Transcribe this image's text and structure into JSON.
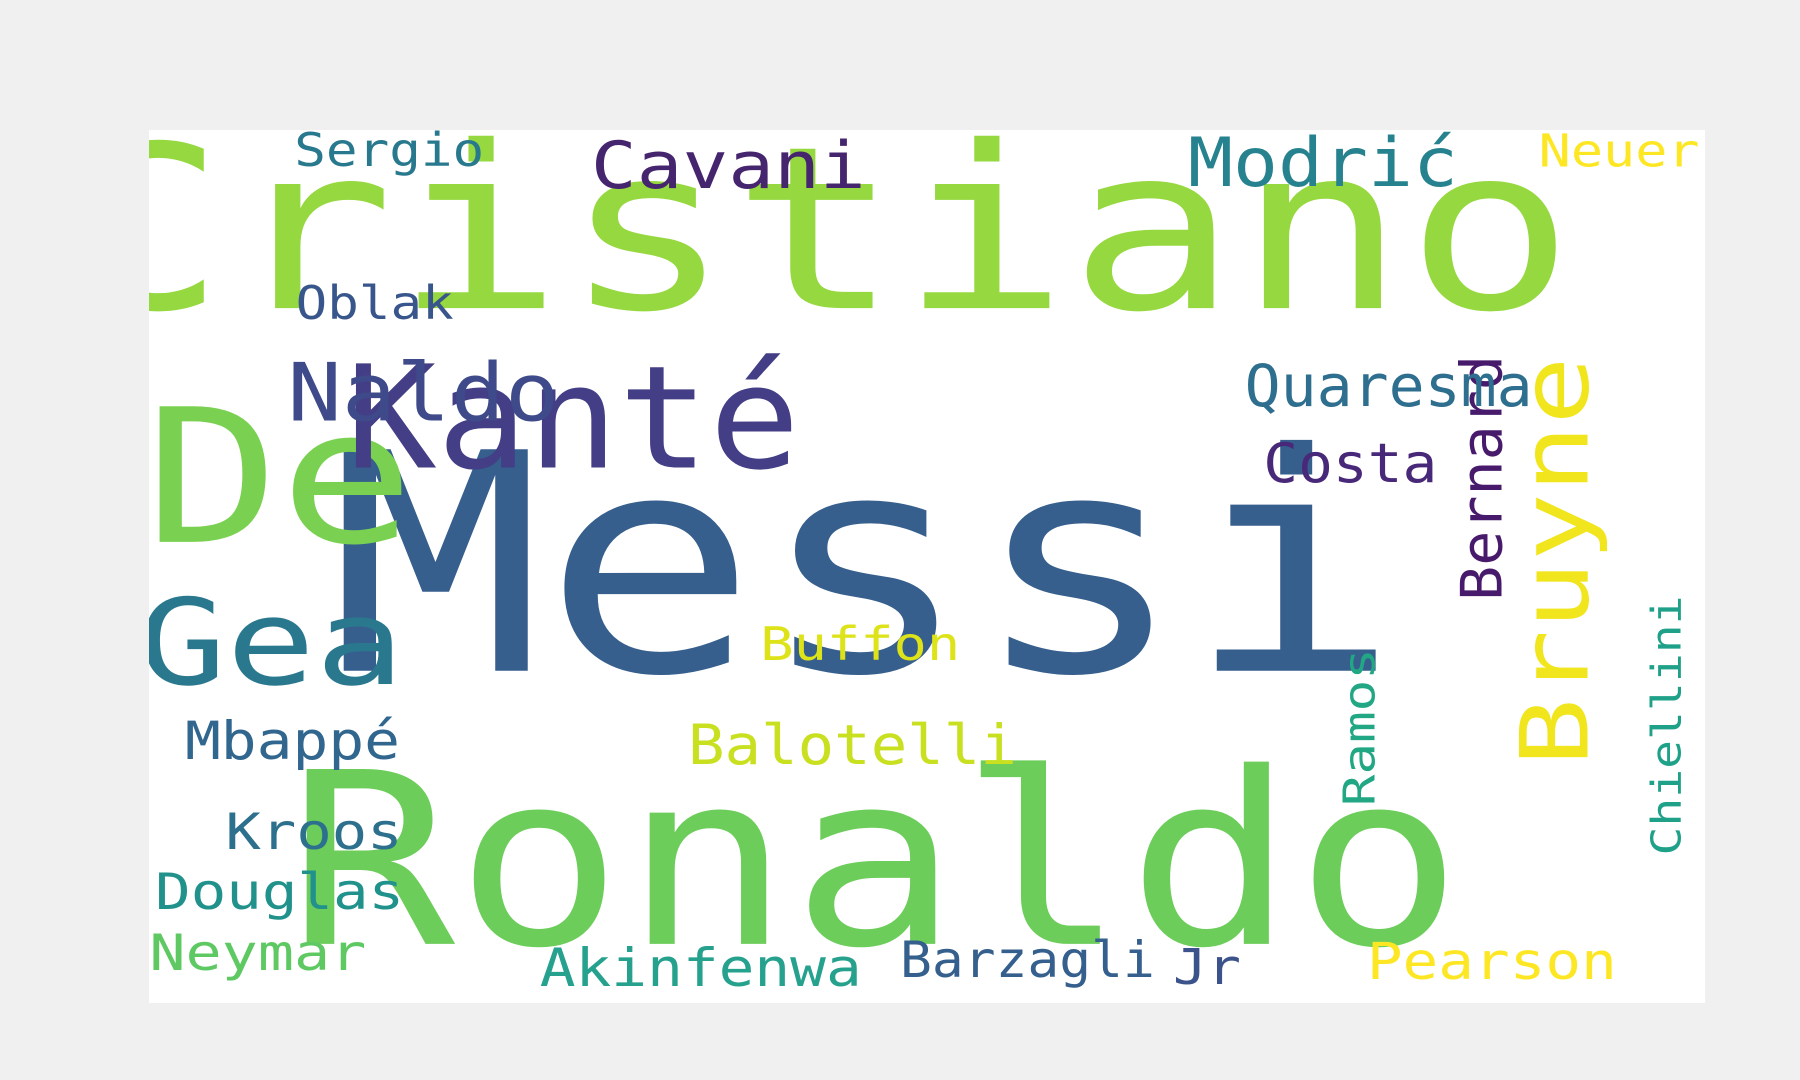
{
  "word_cloud": {
    "words": [
      {
        "id": "cristiano",
        "text": "Cristiano",
        "color": "#96d83f"
      },
      {
        "id": "messi",
        "text": "Messi",
        "color": "#365f8d"
      },
      {
        "id": "ronaldo",
        "text": "Ronaldo",
        "color": "#6ccd5a"
      },
      {
        "id": "de",
        "text": "De",
        "color": "#7ad151"
      },
      {
        "id": "kante",
        "text": "Kanté",
        "color": "#433e85"
      },
      {
        "id": "gea",
        "text": "Gea",
        "color": "#2a788e"
      },
      {
        "id": "bruyne",
        "text": "Bruyne",
        "color": "#f1e51d"
      },
      {
        "id": "naldo",
        "text": "Naldo",
        "color": "#3e4a89"
      },
      {
        "id": "modric",
        "text": "Modrić",
        "color": "#26828e"
      },
      {
        "id": "cavani",
        "text": "Cavani",
        "color": "#46256f"
      },
      {
        "id": "bernard",
        "text": "Bernard",
        "color": "#481a6c"
      },
      {
        "id": "quaresma",
        "text": "Quaresma",
        "color": "#2e6e8e"
      },
      {
        "id": "costa",
        "text": "Costa",
        "color": "#482878"
      },
      {
        "id": "buffon",
        "text": "Buffon",
        "color": "#dde318"
      },
      {
        "id": "balotelli",
        "text": "Balotelli",
        "color": "#c8e020"
      },
      {
        "id": "ramos",
        "text": "Ramos",
        "color": "#22a785"
      },
      {
        "id": "chiellini",
        "text": "Chiellini",
        "color": "#1fa088"
      },
      {
        "id": "mbappe",
        "text": "Mbappé",
        "color": "#31668e"
      },
      {
        "id": "kroos",
        "text": "Kroos",
        "color": "#2d708e"
      },
      {
        "id": "douglas",
        "text": "Douglas",
        "color": "#21918c"
      },
      {
        "id": "neymar",
        "text": "Neymar",
        "color": "#5ec962"
      },
      {
        "id": "akinfenwa",
        "text": "Akinfenwa",
        "color": "#25a18e"
      },
      {
        "id": "barzagli",
        "text": "Barzagli",
        "color": "#355f8d"
      },
      {
        "id": "jr",
        "text": "Jr",
        "color": "#3b528b"
      },
      {
        "id": "pearson",
        "text": "Pearson",
        "color": "#fde725"
      },
      {
        "id": "sergio",
        "text": "Sergio",
        "color": "#29798e"
      },
      {
        "id": "oblak",
        "text": "Oblak",
        "color": "#39568c"
      },
      {
        "id": "neuer",
        "text": "Neuer",
        "color": "#fde725"
      }
    ]
  }
}
